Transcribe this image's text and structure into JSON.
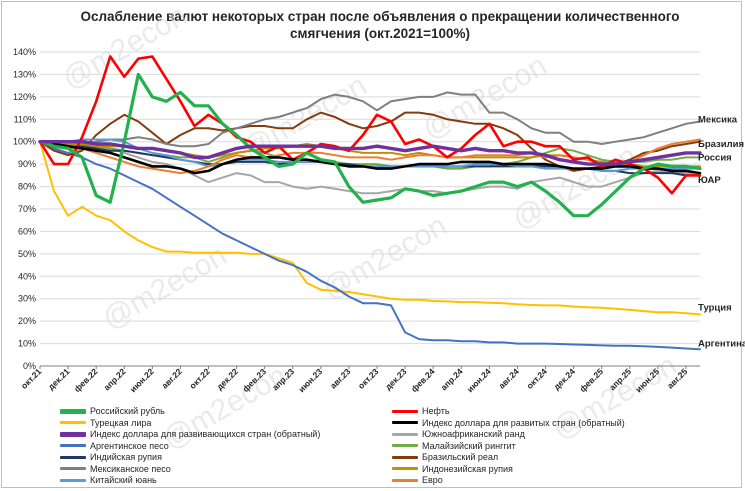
{
  "title": "Ослабление валют некоторых стран после объявления о прекращении количественного\nсмягчения  (окт.2021=100%)",
  "watermark": "@m2econ",
  "chart_data": {
    "type": "line",
    "ylim": [
      0,
      140
    ],
    "y_ticks": [
      "0%",
      "10%",
      "20%",
      "30%",
      "40%",
      "50%",
      "60%",
      "70%",
      "80%",
      "90%",
      "100%",
      "110%",
      "120%",
      "130%",
      "140%"
    ],
    "x_ticks": [
      "окт.21",
      "дек.21",
      "фев.22",
      "апр.22",
      "июн.22",
      "авг.22",
      "окт.22",
      "дек.22",
      "фев.23",
      "апр.23",
      "июн.23",
      "авг.23",
      "окт.23",
      "дек.23",
      "фев.24",
      "апр.24",
      "июн.24",
      "авг.24",
      "окт.24",
      "дек.24",
      "фев.25",
      "апр.25",
      "июн.25",
      "авг.25"
    ],
    "grid": true,
    "legend_position": "bottom",
    "series": [
      {
        "name": "Российский рубль",
        "color": "#22b14c",
        "width": 3.2,
        "values": [
          100,
          98,
          97,
          93,
          76,
          73,
          100,
          130,
          120,
          118,
          122,
          116,
          116,
          108,
          103,
          97,
          93,
          89,
          90,
          95,
          92,
          91,
          80,
          73,
          74,
          75,
          79,
          78,
          76,
          77,
          78,
          80,
          82,
          82,
          80,
          82,
          78,
          73,
          67,
          67,
          72,
          78,
          84,
          88,
          90,
          89,
          89,
          88
        ]
      },
      {
        "name": "Нефть",
        "color": "#ff0000",
        "width": 2.6,
        "values": [
          100,
          90,
          90,
          102,
          118,
          138,
          129,
          137,
          138,
          128,
          118,
          107,
          112,
          108,
          102,
          100,
          95,
          98,
          92,
          95,
          99,
          98,
          96,
          103,
          112,
          109,
          99,
          101,
          98,
          93,
          97,
          103,
          108,
          98,
          100,
          100,
          98,
          98,
          92,
          93,
          89,
          92,
          90,
          88,
          84,
          77,
          85,
          85
        ]
      },
      {
        "name": "Турецкая лира",
        "color": "#ffc000",
        "width": 2,
        "values": [
          100,
          78,
          67,
          71,
          67,
          65,
          60,
          56,
          53,
          51,
          51,
          50.5,
          50.5,
          50.5,
          50.5,
          50,
          50,
          48,
          46,
          37,
          34,
          33.5,
          33,
          32,
          31,
          30,
          29.5,
          29.5,
          29,
          28.8,
          28.5,
          28.5,
          28.2,
          28,
          27.5,
          27.2,
          27,
          27,
          26.5,
          26.2,
          26,
          25.5,
          25,
          24.5,
          24,
          24,
          23.5,
          23
        ]
      },
      {
        "name": "Индекс доллара для развитых стран (обратный)",
        "color": "#000000",
        "width": 2.6,
        "values": [
          100,
          99,
          98,
          97,
          96,
          95,
          93,
          91,
          89,
          89,
          88,
          86,
          87,
          90,
          92,
          93,
          93,
          93,
          92,
          92,
          91,
          90,
          89,
          89,
          88,
          88,
          89,
          90,
          90,
          90,
          91,
          91,
          91,
          90,
          90,
          90,
          90,
          89,
          88,
          88,
          88,
          89,
          89,
          88,
          88,
          87,
          87,
          86
        ]
      },
      {
        "name": "Индекс доллара для развивающихся стран (обратный)",
        "color": "#7030a0",
        "width": 3.4,
        "values": [
          100,
          100,
          100,
          100,
          99,
          99,
          98,
          97,
          97,
          96,
          95,
          93,
          93,
          95,
          97,
          98,
          98,
          98,
          98,
          98,
          98,
          97,
          97,
          97,
          98,
          97,
          96,
          97,
          98,
          97,
          96,
          97,
          96,
          96,
          95,
          95,
          94,
          92,
          91,
          90,
          90,
          90,
          91,
          92,
          93,
          94,
          95,
          95
        ]
      },
      {
        "name": "Южноафриканский ранд",
        "color": "#a6a6a6",
        "width": 2,
        "values": [
          100,
          96,
          95,
          97,
          98,
          97,
          95,
          93,
          91,
          90,
          88,
          85,
          82,
          84,
          86,
          85,
          82,
          82,
          80,
          79,
          80,
          79,
          78,
          77,
          77,
          78,
          79,
          78,
          78,
          77,
          78,
          79,
          80,
          80,
          79,
          82,
          83,
          84,
          82,
          80,
          80,
          82,
          84,
          86,
          87,
          86,
          86,
          85
        ]
      },
      {
        "name": "Аргентинское песо",
        "color": "#4472c4",
        "width": 2,
        "values": [
          100,
          97,
          95,
          93,
          90,
          88,
          85,
          82,
          79,
          75,
          71,
          67,
          63,
          59,
          56,
          53,
          50,
          47,
          45,
          42,
          38,
          35,
          31,
          28,
          28,
          27,
          15,
          12,
          11.5,
          11.5,
          11,
          11,
          10.5,
          10.5,
          10,
          10,
          10,
          9.8,
          9.6,
          9.4,
          9.2,
          9,
          9,
          8.8,
          8.5,
          8.2,
          7.8,
          7.5
        ]
      },
      {
        "name": "Малайзийский ринггит",
        "color": "#70ad47",
        "width": 2,
        "values": [
          100,
          99,
          99,
          99,
          98,
          97,
          96,
          95,
          94,
          94,
          93,
          93,
          91,
          93,
          95,
          96,
          95,
          93,
          92,
          91,
          92,
          91,
          90,
          90,
          90,
          89,
          89,
          89,
          89,
          88,
          88,
          89,
          89,
          90,
          91,
          93,
          95,
          97,
          96,
          94,
          92,
          91,
          91,
          91,
          92,
          92,
          93,
          93
        ]
      },
      {
        "name": "Индийская рупия",
        "color": "#1f3864",
        "width": 2,
        "values": [
          100,
          99,
          98,
          98,
          97,
          96,
          96,
          95,
          94,
          93,
          92,
          91,
          90,
          90,
          91,
          91,
          91,
          90,
          91,
          91,
          91,
          90,
          90,
          89,
          89,
          89,
          89,
          89,
          89,
          89,
          89,
          89,
          89,
          89,
          89,
          89,
          89,
          89,
          88,
          88,
          87,
          87,
          86,
          86,
          86,
          86,
          85,
          85
        ]
      },
      {
        "name": "Бразильский реал",
        "color": "#843c0c",
        "width": 2,
        "values": [
          100,
          96,
          94,
          96,
          103,
          108,
          112,
          109,
          104,
          99,
          103,
          106,
          106,
          105,
          106,
          107,
          107,
          106,
          106,
          110,
          113,
          111,
          108,
          106,
          107,
          109,
          113,
          113,
          112,
          110,
          109,
          108,
          108,
          106,
          103,
          97,
          92,
          89,
          87,
          88,
          89,
          90,
          92,
          95,
          96,
          98,
          99,
          100
        ]
      },
      {
        "name": "Мексиканское песо",
        "color": "#7f7f7f",
        "width": 2,
        "values": [
          100,
          99,
          98,
          99,
          100,
          101,
          101,
          102,
          101,
          99,
          98,
          98,
          99,
          104,
          106,
          108,
          110,
          111,
          113,
          115,
          119,
          121,
          120,
          118,
          114,
          118,
          119,
          120,
          120,
          122,
          121,
          121,
          113,
          113,
          110,
          106,
          104,
          104,
          100,
          100,
          99,
          100,
          101,
          102,
          104,
          106,
          108,
          109
        ]
      },
      {
        "name": "Индонезийская рупия",
        "color": "#bf9000",
        "width": 2,
        "values": [
          100,
          99,
          99,
          99,
          98,
          98,
          98,
          97,
          97,
          96,
          95,
          94,
          93,
          94,
          95,
          96,
          97,
          97,
          98,
          99,
          98,
          97,
          96,
          95,
          95,
          95,
          94,
          95,
          94,
          93,
          93,
          93,
          93,
          93,
          93,
          93,
          94,
          94,
          93,
          92,
          91,
          90,
          90,
          89,
          89,
          89,
          89,
          89
        ]
      },
      {
        "name": "Китайский юань",
        "color": "#5b9bd5",
        "width": 2,
        "values": [
          100,
          100,
          100,
          101,
          101,
          101,
          100,
          97,
          95,
          94,
          92,
          91,
          89,
          90,
          92,
          92,
          92,
          91,
          91,
          91,
          91,
          90,
          89,
          89,
          89,
          89,
          89,
          89,
          89,
          89,
          89,
          90,
          90,
          90,
          89,
          89,
          88,
          88,
          88,
          88,
          87,
          87,
          88,
          88,
          88,
          88,
          88,
          88
        ]
      },
      {
        "name": "Евро",
        "color": "#ed7d31",
        "width": 2,
        "values": [
          100,
          98,
          97,
          97,
          95,
          93,
          91,
          89,
          88,
          87,
          86,
          87,
          89,
          92,
          94,
          93,
          93,
          94,
          95,
          95,
          95,
          94,
          93,
          93,
          93,
          92,
          93,
          94,
          94,
          93,
          93,
          94,
          94,
          94,
          94,
          95,
          93,
          94,
          93,
          92,
          90,
          90,
          91,
          94,
          97,
          99,
          100,
          101
        ]
      }
    ],
    "end_labels": [
      {
        "text": "Мексика",
        "y": 110
      },
      {
        "text": "Бразилия",
        "y": 99
      },
      {
        "text": "Россия",
        "y": 93
      },
      {
        "text": "ЮАР",
        "y": 83
      },
      {
        "text": "Турция",
        "y": 26
      },
      {
        "text": "Аргентина",
        "y": 10
      }
    ]
  }
}
